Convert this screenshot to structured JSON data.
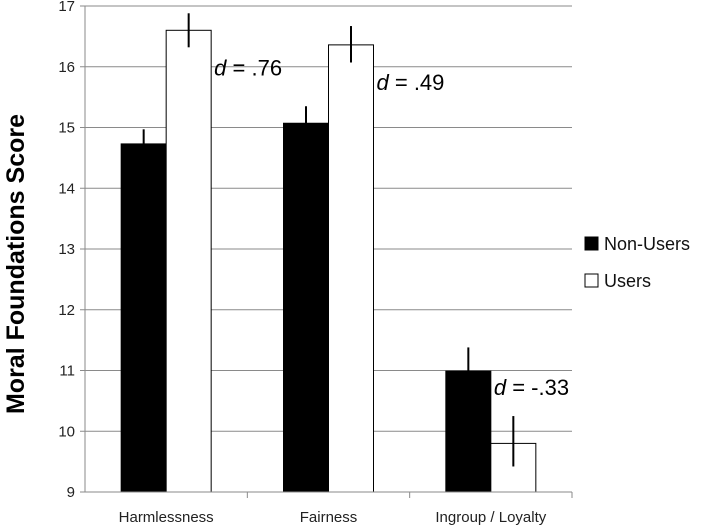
{
  "chart_data": {
    "type": "bar",
    "title": "",
    "xlabel": "",
    "ylabel": "Moral Foundations Score",
    "ylim": [
      9,
      17
    ],
    "yticks": [
      9,
      10,
      11,
      12,
      13,
      14,
      15,
      16,
      17
    ],
    "grid": true,
    "legend_position": "right",
    "categories": [
      "Harmlessness",
      "Fairness",
      "Ingroup / Loyalty"
    ],
    "series": [
      {
        "name": "Non-Users",
        "color": "#000000",
        "values": [
          14.73,
          15.07,
          10.99
        ],
        "error_low": [
          14.5,
          14.8,
          10.62
        ],
        "error_high": [
          14.97,
          15.35,
          11.38
        ]
      },
      {
        "name": "Users",
        "color": "#ffffff",
        "values": [
          16.6,
          16.36,
          9.8
        ],
        "error_low": [
          16.32,
          16.07,
          9.42
        ],
        "error_high": [
          16.88,
          16.67,
          10.25
        ]
      }
    ],
    "annotations": [
      {
        "italic": "d",
        "text": " = .76",
        "category": "Harmlessness"
      },
      {
        "italic": "d",
        "text": " = .49",
        "category": "Fairness"
      },
      {
        "italic": "d",
        "text": " = -.33",
        "category": "Ingroup / Loyalty"
      }
    ]
  }
}
